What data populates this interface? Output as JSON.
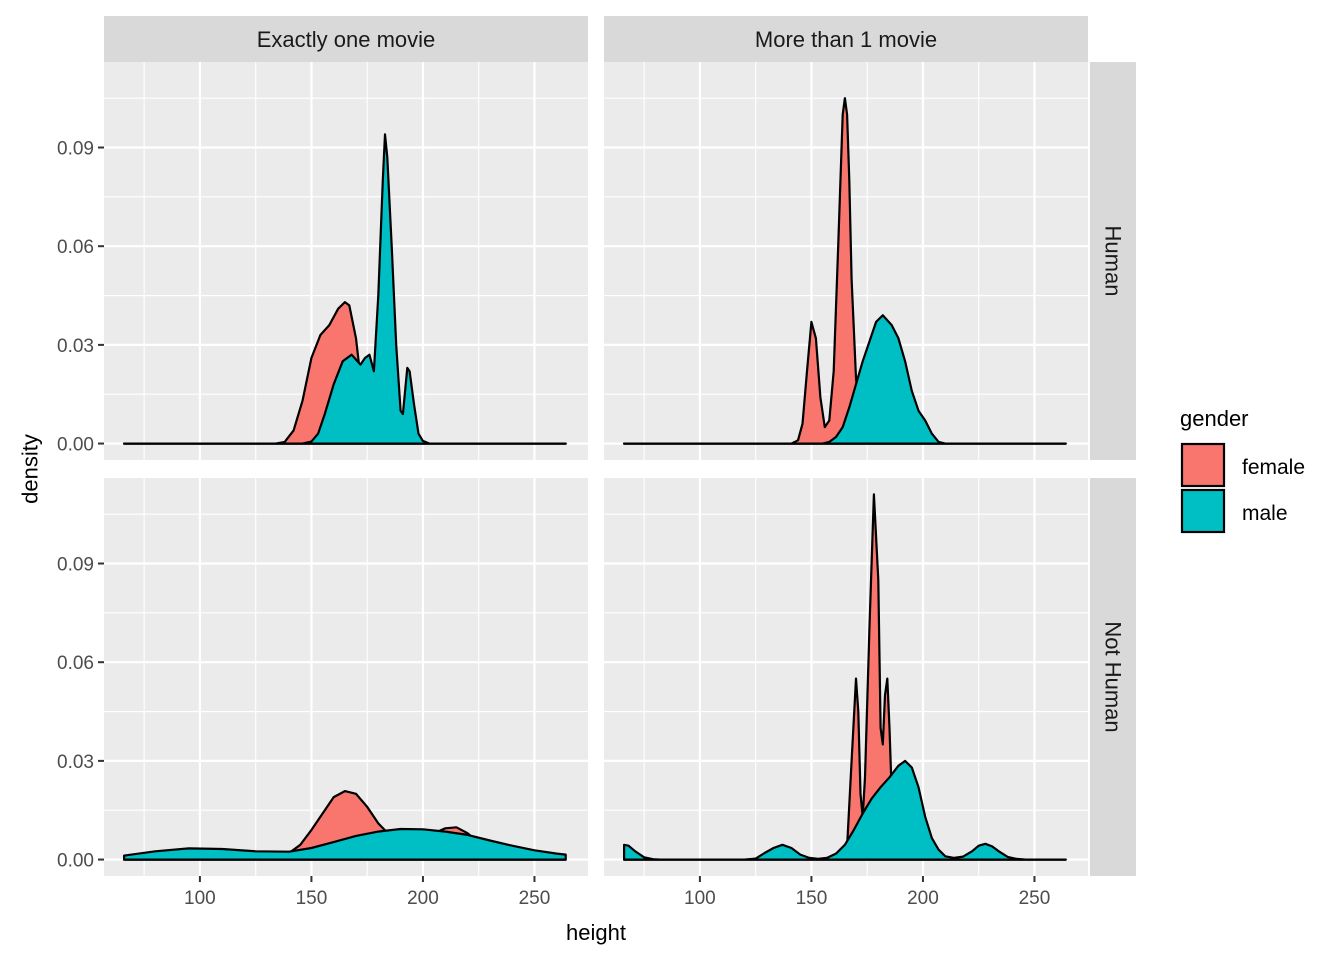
{
  "chart_data": {
    "type": "area",
    "subtype": "density-facet-grid",
    "xlabel": "height",
    "ylabel": "density",
    "xlim": [
      57,
      274
    ],
    "ylim": [
      -0.005,
      0.116
    ],
    "x_ticks": [
      100,
      150,
      200,
      250
    ],
    "y_ticks": [
      0.0,
      0.03,
      0.06,
      0.09
    ],
    "y_tick_labels": [
      "0.00",
      "0.03",
      "0.06",
      "0.09"
    ],
    "grid": true,
    "legend": {
      "title": "gender",
      "position": "right",
      "entries": [
        {
          "label": "female",
          "color": "#F8766D"
        },
        {
          "label": "male",
          "color": "#00BFC4"
        }
      ]
    },
    "col_facets": [
      "Exactly one movie",
      "More than 1 movie"
    ],
    "row_facets": [
      "Human",
      "Not Human"
    ],
    "colors": {
      "panel_bg": "#EBEBEB",
      "strip_bg": "#D9D9D9",
      "grid": "#FFFFFF",
      "outline": "#000000"
    },
    "panels": [
      {
        "row": 0,
        "col": 0,
        "series": [
          {
            "name": "female",
            "color": "#F8766D",
            "points": [
              [
                66,
                0
              ],
              [
                134,
                0
              ],
              [
                138,
                0.0005
              ],
              [
                142,
                0.004
              ],
              [
                146,
                0.013
              ],
              [
                150,
                0.026
              ],
              [
                154,
                0.033
              ],
              [
                158,
                0.036
              ],
              [
                162,
                0.041
              ],
              [
                165,
                0.043
              ],
              [
                167,
                0.042
              ],
              [
                170,
                0.032
              ],
              [
                172,
                0.02
              ],
              [
                175,
                0.007
              ],
              [
                178,
                0.001
              ],
              [
                181,
                0
              ],
              [
                264,
                0
              ]
            ]
          },
          {
            "name": "male",
            "color": "#00BFC4",
            "points": [
              [
                66,
                0
              ],
              [
                140,
                0
              ],
              [
                146,
                0
              ],
              [
                150,
                0.0006
              ],
              [
                153,
                0.003
              ],
              [
                156,
                0.009
              ],
              [
                160,
                0.018
              ],
              [
                164,
                0.025
              ],
              [
                168,
                0.027
              ],
              [
                172,
                0.024
              ],
              [
                174,
                0.026
              ],
              [
                176,
                0.027
              ],
              [
                178,
                0.022
              ],
              [
                180,
                0.045
              ],
              [
                182,
                0.08
              ],
              [
                183,
                0.094
              ],
              [
                184,
                0.087
              ],
              [
                186,
                0.06
              ],
              [
                188,
                0.03
              ],
              [
                190,
                0.01
              ],
              [
                191,
                0.009
              ],
              [
                193,
                0.023
              ],
              [
                194,
                0.022
              ],
              [
                196,
                0.012
              ],
              [
                198,
                0.003
              ],
              [
                200,
                0.0008
              ],
              [
                203,
                0
              ],
              [
                264,
                0
              ]
            ]
          }
        ]
      },
      {
        "row": 0,
        "col": 1,
        "series": [
          {
            "name": "female",
            "color": "#F8766D",
            "points": [
              [
                66,
                0
              ],
              [
                141,
                0
              ],
              [
                144,
                0.001
              ],
              [
                146,
                0.006
              ],
              [
                148,
                0.022
              ],
              [
                150,
                0.037
              ],
              [
                152,
                0.032
              ],
              [
                154,
                0.014
              ],
              [
                156,
                0.005
              ],
              [
                158,
                0.007
              ],
              [
                160,
                0.022
              ],
              [
                162,
                0.06
              ],
              [
                164,
                0.1
              ],
              [
                165,
                0.105
              ],
              [
                166,
                0.1
              ],
              [
                167,
                0.08
              ],
              [
                168,
                0.05
              ],
              [
                170,
                0.02
              ],
              [
                172,
                0.006
              ],
              [
                175,
                0.001
              ],
              [
                178,
                0
              ],
              [
                264,
                0
              ]
            ]
          },
          {
            "name": "male",
            "color": "#00BFC4",
            "points": [
              [
                66,
                0
              ],
              [
                150,
                0
              ],
              [
                155,
                0
              ],
              [
                158,
                0.0005
              ],
              [
                161,
                0.002
              ],
              [
                164,
                0.005
              ],
              [
                167,
                0.011
              ],
              [
                170,
                0.018
              ],
              [
                173,
                0.025
              ],
              [
                176,
                0.031
              ],
              [
                179,
                0.037
              ],
              [
                182,
                0.039
              ],
              [
                186,
                0.036
              ],
              [
                189,
                0.032
              ],
              [
                192,
                0.025
              ],
              [
                195,
                0.016
              ],
              [
                198,
                0.01
              ],
              [
                201,
                0.007
              ],
              [
                204,
                0.003
              ],
              [
                207,
                0.0005
              ],
              [
                210,
                0
              ],
              [
                264,
                0
              ]
            ]
          }
        ]
      },
      {
        "row": 1,
        "col": 0,
        "series": [
          {
            "name": "female",
            "color": "#F8766D",
            "points": [
              [
                66,
                0
              ],
              [
                125,
                0
              ],
              [
                130,
                0.0003
              ],
              [
                135,
                0.0008
              ],
              [
                140,
                0.002
              ],
              [
                145,
                0.0045
              ],
              [
                150,
                0.009
              ],
              [
                155,
                0.014
              ],
              [
                160,
                0.019
              ],
              [
                165,
                0.0208
              ],
              [
                170,
                0.02
              ],
              [
                175,
                0.016
              ],
              [
                180,
                0.011
              ],
              [
                185,
                0.0075
              ],
              [
                190,
                0.005
              ],
              [
                195,
                0.0045
              ],
              [
                200,
                0.0055
              ],
              [
                205,
                0.008
              ],
              [
                210,
                0.0095
              ],
              [
                215,
                0.0098
              ],
              [
                220,
                0.008
              ],
              [
                225,
                0.005
              ],
              [
                230,
                0.002
              ],
              [
                235,
                0.0005
              ],
              [
                240,
                0
              ],
              [
                264,
                0
              ]
            ]
          },
          {
            "name": "male",
            "color": "#00BFC4",
            "points": [
              [
                66,
                0
              ],
              [
                66,
                0.0012
              ],
              [
                80,
                0.0025
              ],
              [
                95,
                0.0034
              ],
              [
                110,
                0.0032
              ],
              [
                125,
                0.0025
              ],
              [
                140,
                0.0024
              ],
              [
                150,
                0.0035
              ],
              [
                160,
                0.0053
              ],
              [
                170,
                0.0072
              ],
              [
                180,
                0.0085
              ],
              [
                190,
                0.0093
              ],
              [
                200,
                0.0092
              ],
              [
                210,
                0.0085
              ],
              [
                220,
                0.0075
              ],
              [
                230,
                0.0058
              ],
              [
                240,
                0.0042
              ],
              [
                250,
                0.0028
              ],
              [
                260,
                0.0018
              ],
              [
                264,
                0.0015
              ],
              [
                264,
                0
              ]
            ]
          }
        ]
      },
      {
        "row": 1,
        "col": 1,
        "series": [
          {
            "name": "female",
            "color": "#F8766D",
            "points": [
              [
                66,
                0
              ],
              [
                164,
                0
              ],
              [
                165,
                0.0005
              ],
              [
                166,
                0.004
              ],
              [
                168,
                0.03
              ],
              [
                170,
                0.055
              ],
              [
                171,
                0.045
              ],
              [
                172,
                0.02
              ],
              [
                173,
                0.013
              ],
              [
                174,
                0.025
              ],
              [
                176,
                0.07
              ],
              [
                178,
                0.111
              ],
              [
                180,
                0.085
              ],
              [
                181,
                0.04
              ],
              [
                182,
                0.035
              ],
              [
                183,
                0.05
              ],
              [
                184,
                0.055
              ],
              [
                185,
                0.04
              ],
              [
                186,
                0.02
              ],
              [
                188,
                0.006
              ],
              [
                190,
                0.001
              ],
              [
                193,
                0
              ],
              [
                264,
                0
              ]
            ]
          },
          {
            "name": "male",
            "color": "#00BFC4",
            "points": [
              [
                66,
                0
              ],
              [
                66,
                0.0045
              ],
              [
                68,
                0.0042
              ],
              [
                71,
                0.0025
              ],
              [
                75,
                0.0007
              ],
              [
                79,
                0.0001
              ],
              [
                82,
                0
              ],
              [
                120,
                0
              ],
              [
                125,
                0.0003
              ],
              [
                129,
                0.002
              ],
              [
                133,
                0.0035
              ],
              [
                137,
                0.0045
              ],
              [
                141,
                0.0035
              ],
              [
                145,
                0.0015
              ],
              [
                149,
                0.0005
              ],
              [
                153,
                0.0002
              ],
              [
                157,
                0.0005
              ],
              [
                161,
                0.0018
              ],
              [
                165,
                0.0045
              ],
              [
                169,
                0.009
              ],
              [
                173,
                0.014
              ],
              [
                177,
                0.0185
              ],
              [
                181,
                0.022
              ],
              [
                185,
                0.025
              ],
              [
                189,
                0.0285
              ],
              [
                192,
                0.03
              ],
              [
                195,
                0.028
              ],
              [
                198,
                0.022
              ],
              [
                201,
                0.013
              ],
              [
                204,
                0.0065
              ],
              [
                207,
                0.003
              ],
              [
                210,
                0.001
              ],
              [
                214,
                0.0005
              ],
              [
                218,
                0.0009
              ],
              [
                222,
                0.0025
              ],
              [
                225,
                0.0042
              ],
              [
                228,
                0.0048
              ],
              [
                231,
                0.004
              ],
              [
                234,
                0.0025
              ],
              [
                238,
                0.0008
              ],
              [
                242,
                0.0002
              ],
              [
                246,
                0
              ],
              [
                264,
                0
              ]
            ]
          }
        ]
      }
    ]
  }
}
